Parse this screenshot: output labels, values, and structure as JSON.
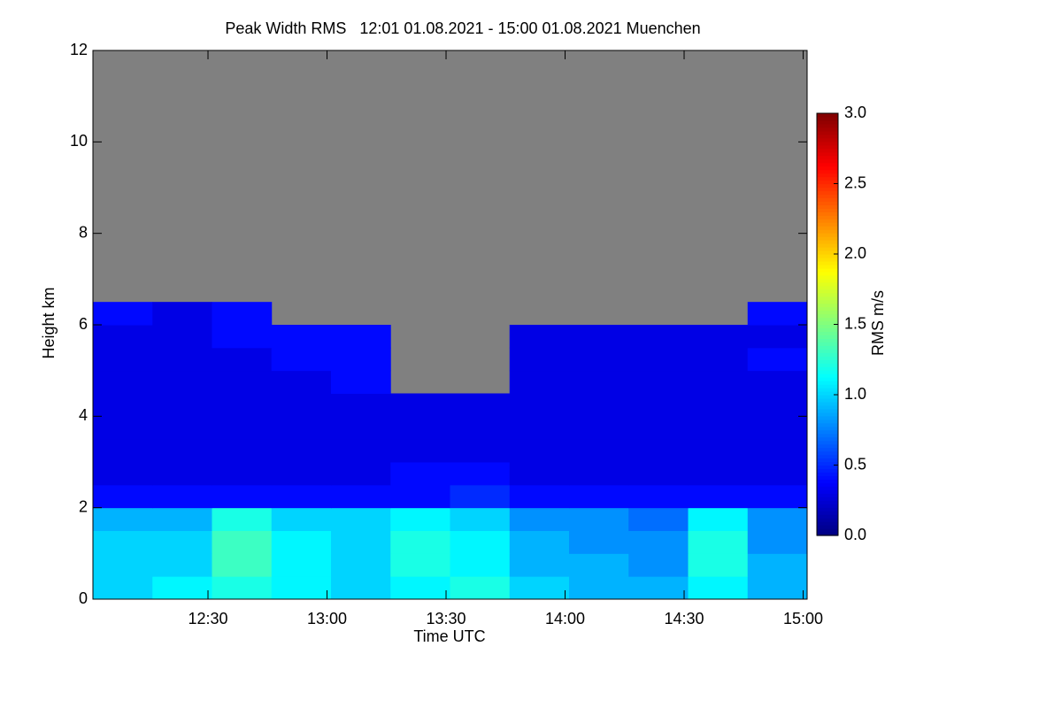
{
  "chart_data": {
    "type": "heatmap",
    "title": "Peak Width RMS   12:01 01.08.2021 - 15:00 01.08.2021 Muenchen",
    "x_label": "Time UTC",
    "y_label": "Height km",
    "colorbar_label": "RMS m/s",
    "missing_color": "#808080",
    "xlim": [
      721,
      901
    ],
    "xticks": [
      {
        "value": 750,
        "label": "12:30"
      },
      {
        "value": 780,
        "label": "13:00"
      },
      {
        "value": 810,
        "label": "13:30"
      },
      {
        "value": 840,
        "label": "14:00"
      },
      {
        "value": 870,
        "label": "14:30"
      },
      {
        "value": 900,
        "label": "15:00"
      }
    ],
    "ylim": [
      0,
      12
    ],
    "yticks": [
      0,
      2,
      4,
      6,
      8,
      10,
      12
    ],
    "clim": [
      0,
      3
    ],
    "cticks": [
      {
        "value": 0,
        "label": "0.0"
      },
      {
        "value": 0.5,
        "label": "0.5"
      },
      {
        "value": 1,
        "label": "1.0"
      },
      {
        "value": 1.5,
        "label": "1.5"
      },
      {
        "value": 2,
        "label": "2.0"
      },
      {
        "value": 2.5,
        "label": "2.5"
      },
      {
        "value": 3,
        "label": "3.0"
      }
    ],
    "x_edges": [
      721,
      736,
      751,
      766,
      781,
      796,
      811,
      826,
      841,
      856,
      871,
      886,
      901
    ],
    "y_edges": [
      0,
      0.5,
      1,
      1.5,
      2,
      2.5,
      3,
      3.5,
      4,
      4.5,
      5,
      5.5,
      6,
      6.5
    ],
    "z": [
      [
        1.0,
        1.1,
        1.2,
        1.1,
        1.0,
        1.1,
        1.2,
        1.0,
        0.9,
        0.9,
        1.1,
        0.9
      ],
      [
        1.0,
        1.0,
        1.3,
        1.1,
        1.0,
        1.2,
        1.1,
        0.9,
        0.9,
        0.8,
        1.2,
        0.9
      ],
      [
        1.0,
        1.0,
        1.3,
        1.1,
        1.0,
        1.2,
        1.1,
        0.9,
        0.8,
        0.8,
        1.2,
        0.8
      ],
      [
        0.9,
        0.9,
        1.2,
        1.0,
        1.0,
        1.1,
        1.0,
        0.8,
        0.8,
        0.7,
        1.1,
        0.8
      ],
      [
        0.4,
        0.4,
        0.4,
        0.4,
        0.4,
        0.4,
        0.5,
        0.4,
        0.4,
        0.4,
        0.4,
        0.4
      ],
      [
        0.3,
        0.3,
        0.3,
        0.3,
        0.3,
        0.4,
        0.4,
        0.3,
        0.3,
        0.3,
        0.3,
        0.3
      ],
      [
        0.3,
        0.3,
        0.3,
        0.3,
        0.3,
        0.3,
        0.3,
        0.3,
        0.3,
        0.3,
        0.3,
        0.3
      ],
      [
        0.3,
        0.3,
        0.3,
        0.3,
        0.3,
        0.3,
        0.3,
        0.3,
        0.3,
        0.3,
        0.3,
        0.3
      ],
      [
        0.3,
        0.3,
        0.3,
        0.3,
        0.3,
        0.3,
        0.3,
        0.3,
        0.3,
        0.3,
        0.3,
        0.3
      ],
      [
        0.3,
        0.3,
        0.3,
        0.3,
        0.4,
        null,
        null,
        0.3,
        0.3,
        0.3,
        0.3,
        0.3
      ],
      [
        0.3,
        0.3,
        0.3,
        0.4,
        0.4,
        null,
        null,
        0.3,
        0.3,
        0.3,
        0.3,
        0.4
      ],
      [
        0.3,
        0.3,
        0.4,
        0.4,
        0.4,
        null,
        null,
        0.3,
        0.3,
        0.3,
        0.3,
        0.3
      ],
      [
        0.4,
        0.3,
        0.4,
        null,
        null,
        null,
        null,
        null,
        null,
        null,
        null,
        0.4
      ]
    ]
  }
}
